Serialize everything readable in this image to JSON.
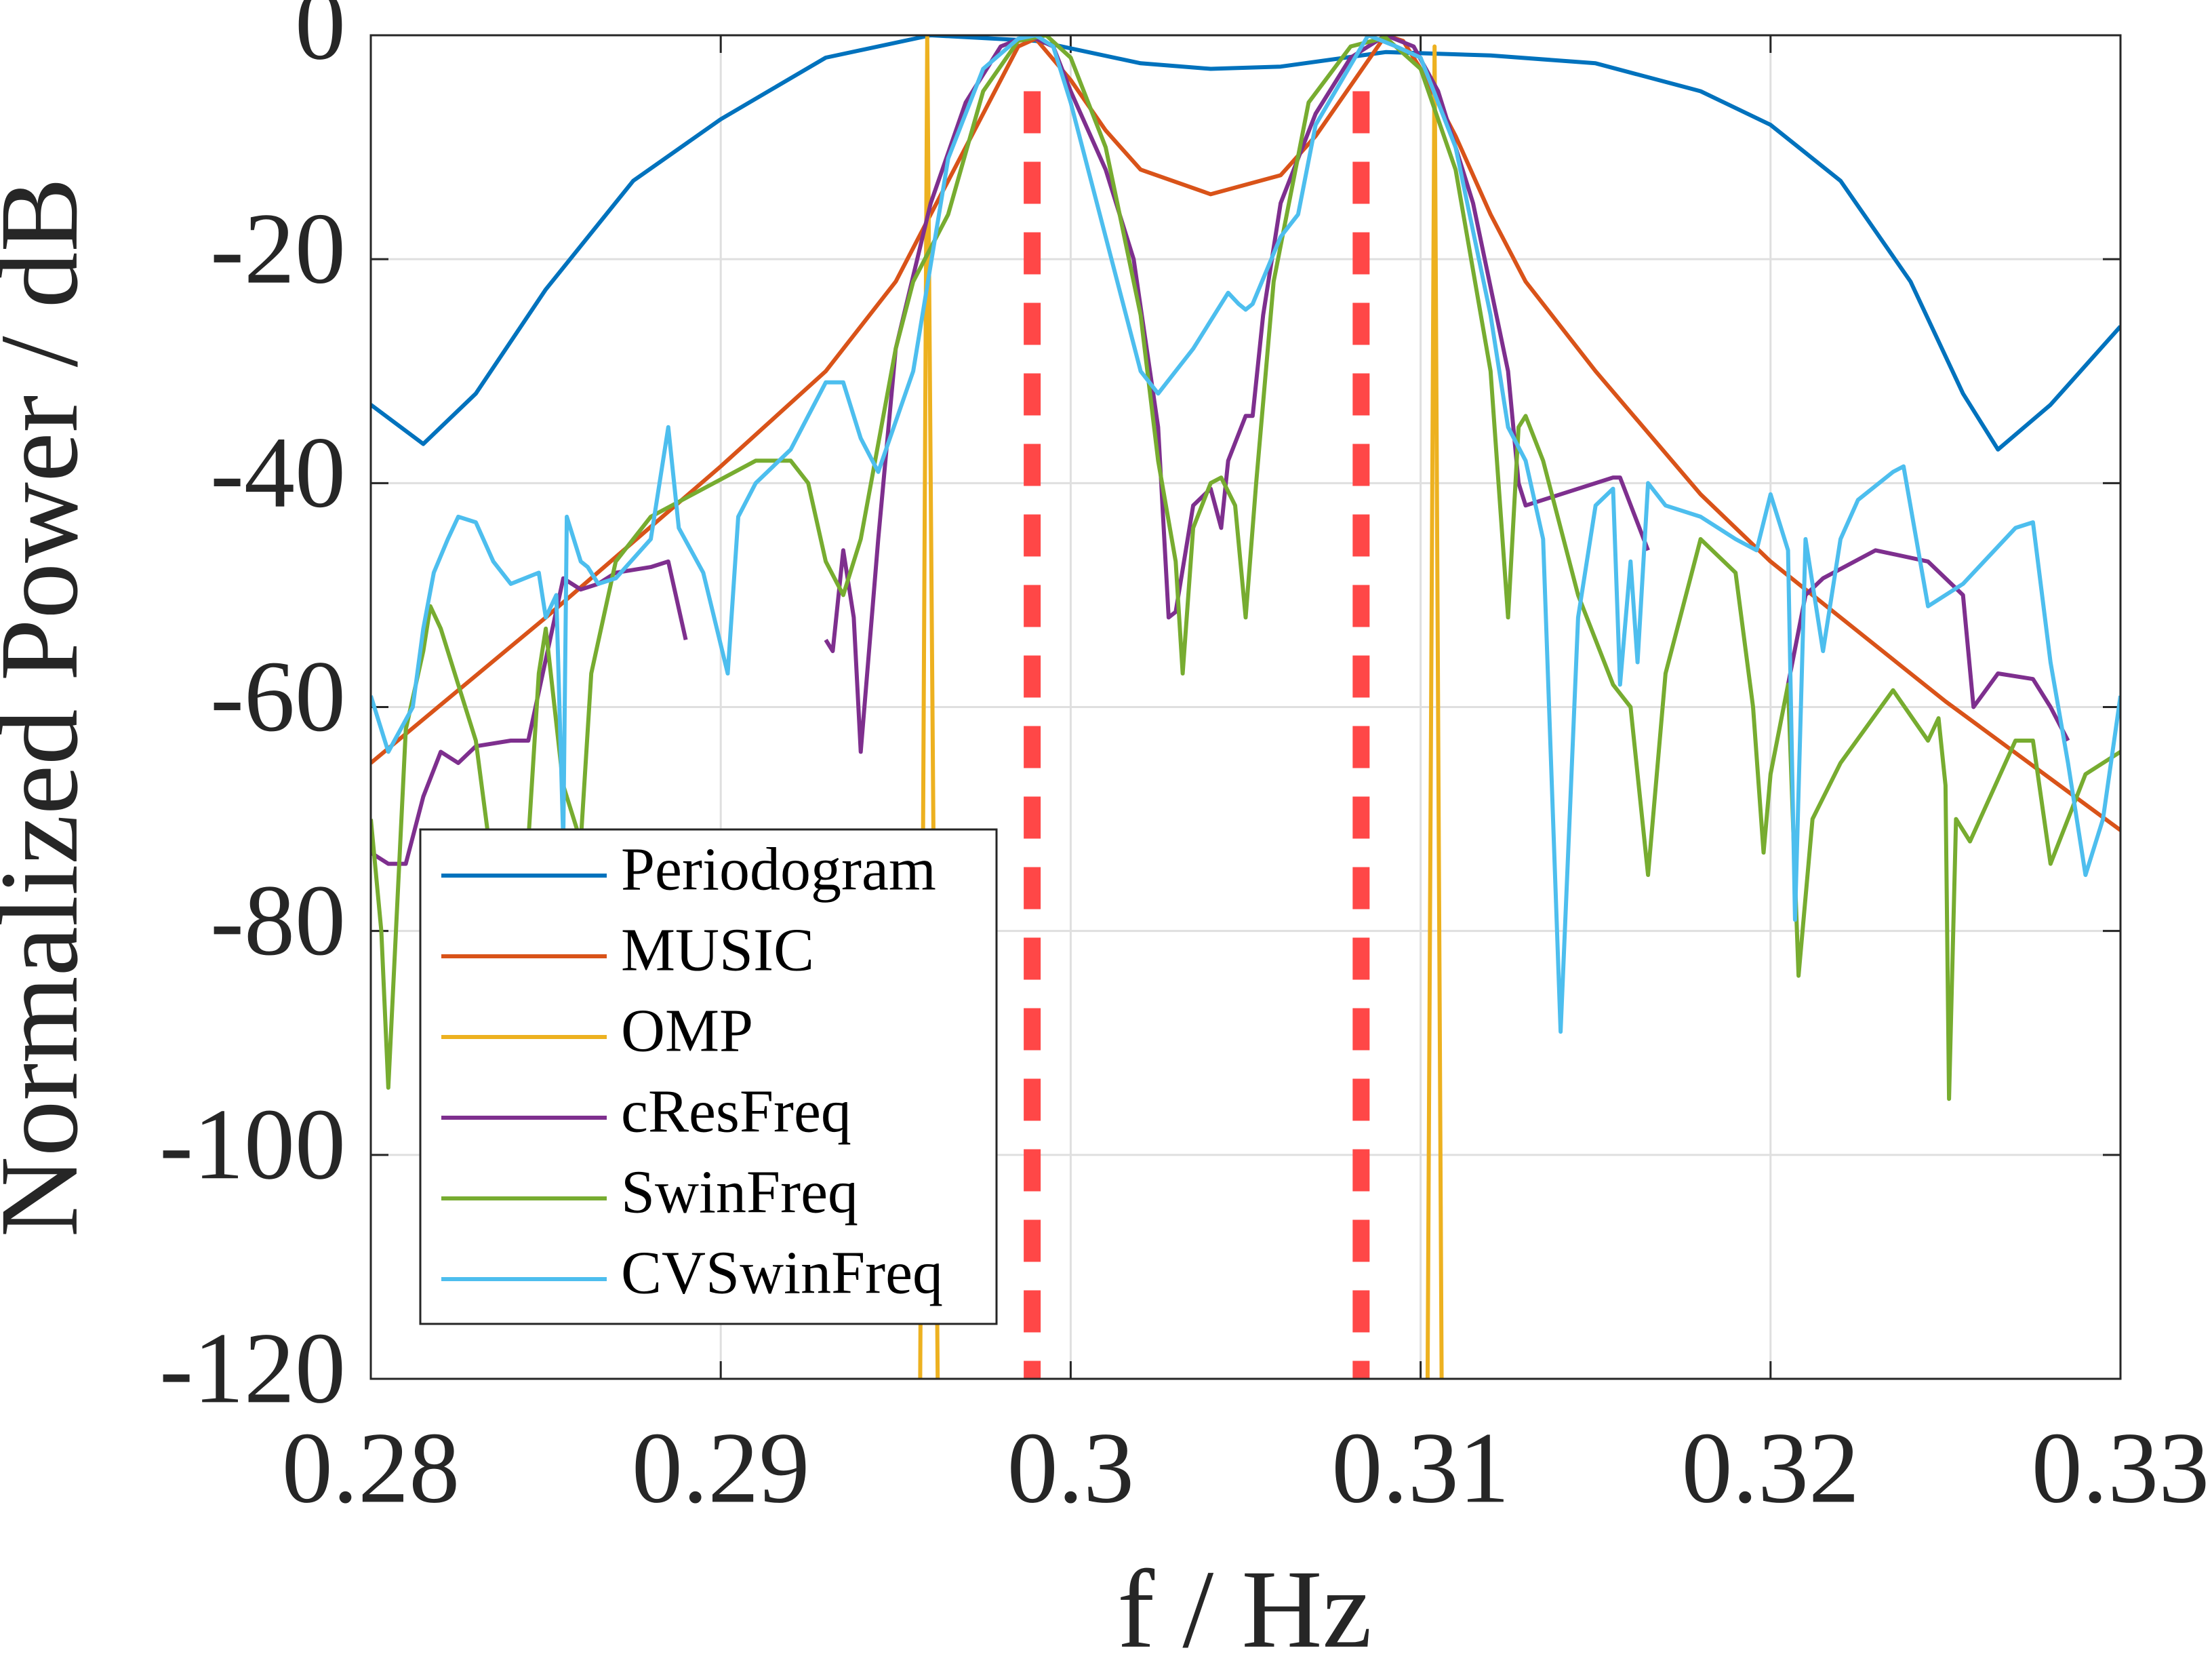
{
  "chart_data": {
    "type": "line",
    "xlabel": "f / Hz",
    "ylabel": "Normalized Power / dB",
    "xlim": [
      0.28,
      0.33
    ],
    "ylim": [
      -120,
      0
    ],
    "xticks": [
      0.28,
      0.29,
      0.3,
      0.31,
      0.32,
      0.33
    ],
    "yticks": [
      -120,
      -100,
      -80,
      -60,
      -40,
      -20,
      0
    ],
    "grid": true,
    "legend": "southwest",
    "reference_lines": {
      "x": [
        0.2989,
        0.3083
      ],
      "top": -5,
      "color": "#ff4747"
    },
    "series": [
      {
        "name": "Periodogram",
        "color": "#0072bd",
        "x": [
          0.28,
          0.2815,
          0.283,
          0.285,
          0.2875,
          0.29,
          0.293,
          0.296,
          0.299,
          0.302,
          0.304,
          0.306,
          0.309,
          0.312,
          0.315,
          0.318,
          0.32,
          0.322,
          0.324,
          0.3255,
          0.3265,
          0.328,
          0.33
        ],
        "values": [
          -33,
          -36.5,
          -32,
          -22.7,
          -13,
          -7.5,
          -2,
          0,
          -0.5,
          -2.5,
          -3,
          -2.8,
          -1.5,
          -1.8,
          -2.5,
          -5,
          -8,
          -13,
          -22,
          -32,
          -37,
          -33,
          -26
        ]
      },
      {
        "name": "MUSIC",
        "color": "#d95319",
        "x": [
          0.28,
          0.285,
          0.29,
          0.293,
          0.295,
          0.296,
          0.297,
          0.2985,
          0.299,
          0.3,
          0.301,
          0.302,
          0.304,
          0.306,
          0.307,
          0.308,
          0.309,
          0.3095,
          0.31,
          0.311,
          0.312,
          0.313,
          0.315,
          0.318,
          0.32,
          0.325,
          0.33
        ],
        "values": [
          -65,
          -52,
          -38.5,
          -30,
          -22,
          -16,
          -10,
          -1,
          -0.3,
          -4,
          -8.5,
          -12,
          -14.2,
          -12.5,
          -9,
          -4.5,
          0,
          -0.5,
          -3,
          -9,
          -16,
          -22,
          -30,
          -41,
          -47,
          -59.5,
          -71
        ]
      },
      {
        "name": "OMP",
        "color": "#edb120",
        "x": [
          0.2957,
          0.2959,
          0.2962,
          null,
          0.3102,
          0.3104,
          0.3106
        ],
        "values": [
          -120,
          0,
          -120,
          null,
          -120,
          -1,
          -120
        ]
      },
      {
        "name": "cResFreq",
        "color": "#7e2f8e",
        "x": [
          0.28,
          0.2805,
          0.281,
          0.2815,
          0.282,
          0.2825,
          0.283,
          0.284,
          0.2845,
          0.2855,
          0.286,
          0.2865,
          0.287,
          0.288,
          0.2885,
          0.289,
          null,
          0.293,
          0.2932,
          0.2935,
          0.2938,
          0.294,
          0.2945,
          0.295,
          0.296,
          0.297,
          0.298,
          0.2988,
          0.2995,
          0.3,
          0.301,
          0.3018,
          0.3025,
          0.3028,
          0.303,
          0.3035,
          0.304,
          0.3043,
          0.3045,
          0.305,
          0.3052,
          0.3055,
          0.306,
          0.307,
          0.308,
          0.309,
          0.3098,
          0.3105,
          0.3115,
          0.3125,
          0.3128,
          0.313,
          0.314,
          0.3155,
          0.3157,
          0.3165,
          null,
          0.3205,
          0.321,
          0.3215,
          0.323,
          0.3245,
          0.3255,
          0.3258,
          0.3265,
          0.3275,
          0.328,
          0.3285
        ],
        "values": [
          -73,
          -74,
          -74,
          -68,
          -64,
          -65,
          -63.5,
          -63,
          -63,
          -48.5,
          -49.5,
          -49,
          -48,
          -47.5,
          -47,
          -54,
          null,
          -54,
          -55,
          -46,
          -52,
          -64,
          -45,
          -28,
          -15,
          -6,
          -1,
          0,
          -1,
          -5,
          -12,
          -20,
          -35,
          -52,
          -51.5,
          -42,
          -40.5,
          -44,
          -38,
          -34,
          -34,
          -25,
          -15,
          -7,
          -2,
          0,
          -1,
          -5,
          -15,
          -30,
          -40,
          -42,
          -41,
          -39.5,
          -39.5,
          -46,
          null,
          -58,
          -50,
          -48.5,
          -46,
          -47,
          -50,
          -60,
          -57,
          -57.5,
          -60,
          -63
        ]
      },
      {
        "name": "SwinFreq",
        "color": "#77ac30",
        "x": [
          0.28,
          0.2803,
          0.2805,
          0.281,
          0.2815,
          0.2817,
          0.282,
          0.2825,
          0.283,
          0.2835,
          0.284,
          0.2845,
          0.2848,
          0.285,
          0.2855,
          0.286,
          0.2863,
          0.287,
          0.288,
          0.2895,
          0.291,
          0.292,
          0.2925,
          0.293,
          0.2935,
          0.294,
          0.295,
          0.2955,
          0.2965,
          0.2975,
          0.2985,
          0.2993,
          0.3,
          0.301,
          0.302,
          0.3025,
          0.303,
          0.3032,
          0.3035,
          0.304,
          0.3043,
          0.3047,
          0.305,
          0.3053,
          0.3058,
          0.3068,
          0.308,
          0.309,
          0.31,
          0.311,
          0.312,
          0.3125,
          0.3128,
          0.313,
          0.3135,
          0.3145,
          0.3155,
          0.316,
          0.3165,
          0.317,
          0.318,
          0.319,
          0.3195,
          0.3198,
          0.32,
          0.3205,
          0.3208,
          0.3212,
          0.322,
          0.3235,
          0.3245,
          0.3248,
          0.325,
          0.3251,
          0.3253,
          0.3257,
          0.327,
          0.3275,
          0.328,
          0.329,
          0.33
        ],
        "values": [
          -70,
          -80,
          -94,
          -62,
          -55,
          -51,
          -53,
          -58,
          -63,
          -75,
          -80,
          -72,
          -57,
          -53,
          -67,
          -72,
          -57,
          -47,
          -43,
          -40.5,
          -38,
          -38,
          -40,
          -47,
          -50,
          -45,
          -28,
          -22,
          -16,
          -5,
          -0.5,
          0,
          -2,
          -10,
          -25,
          -38,
          -47,
          -57,
          -44,
          -40,
          -39.5,
          -42,
          -52,
          -40,
          -22,
          -6,
          -1,
          -0.2,
          -3,
          -12,
          -30,
          -52,
          -35,
          -34,
          -38,
          -50,
          -58,
          -60,
          -75,
          -57,
          -45,
          -48,
          -60,
          -73,
          -66,
          -58,
          -84,
          -70,
          -65,
          -58.5,
          -63,
          -61,
          -67,
          -95,
          -70,
          -72,
          -63,
          -63,
          -74,
          -66,
          -64
        ]
      },
      {
        "name": "CVSwinFreq",
        "color": "#4dbeee",
        "x": [
          0.28,
          0.2805,
          0.2812,
          0.2815,
          0.2818,
          0.2822,
          0.2825,
          0.283,
          0.2835,
          0.284,
          0.2848,
          0.285,
          0.2853,
          0.2855,
          0.2856,
          0.286,
          0.2862,
          0.2865,
          0.287,
          0.288,
          0.2885,
          0.2888,
          0.2895,
          0.2902,
          0.2905,
          0.291,
          0.292,
          0.2925,
          0.293,
          0.2935,
          0.294,
          0.2945,
          0.2955,
          0.2965,
          0.2975,
          0.2985,
          0.299,
          0.2995,
          0.3,
          0.301,
          0.302,
          0.3025,
          0.3035,
          0.3045,
          0.3048,
          0.305,
          0.3052,
          0.306,
          0.3065,
          0.307,
          0.3085,
          0.3093,
          0.31,
          0.311,
          0.312,
          0.3125,
          0.313,
          0.3135,
          0.314,
          0.3145,
          0.315,
          0.3155,
          0.3157,
          0.316,
          0.3162,
          0.3165,
          0.317,
          0.318,
          0.319,
          0.3196,
          0.32,
          0.3205,
          0.3207,
          0.321,
          0.3215,
          0.322,
          0.3225,
          0.3235,
          0.3238,
          0.3245,
          0.3255,
          0.327,
          0.3275,
          0.328,
          0.3285,
          0.329,
          0.3295,
          0.33
        ],
        "values": [
          -59,
          -64,
          -60,
          -53,
          -48,
          -45,
          -43,
          -43.5,
          -47,
          -49,
          -48,
          -52,
          -50,
          -72,
          -43,
          -47,
          -47.5,
          -49,
          -48.5,
          -45,
          -35,
          -44,
          -48,
          -57,
          -43,
          -40,
          -37,
          -34,
          -31,
          -31,
          -36,
          -39,
          -30,
          -11,
          -3,
          -0.3,
          0,
          -1,
          -6,
          -18,
          -30,
          -32,
          -28,
          -23,
          -24,
          -24.5,
          -24,
          -18,
          -16,
          -8,
          0,
          -1,
          -2,
          -10,
          -25,
          -35,
          -38,
          -45,
          -89,
          -52,
          -42,
          -40.5,
          -58,
          -47,
          -56,
          -40,
          -42,
          -43,
          -45,
          -46,
          -41,
          -46,
          -79,
          -45,
          -55,
          -45,
          -41.5,
          -39,
          -38.5,
          -51,
          -49,
          -44,
          -43.5,
          -56,
          -65,
          -75,
          -70,
          -59
        ]
      }
    ]
  }
}
